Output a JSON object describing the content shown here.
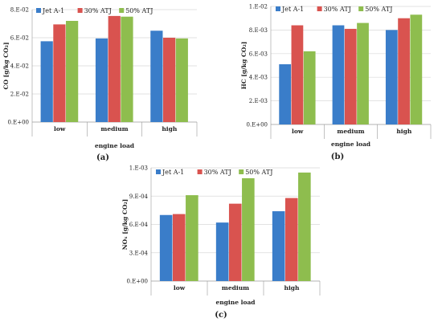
{
  "colors": {
    "series": [
      "#3a7dc9",
      "#d9534f",
      "#8ebd4e"
    ],
    "grid": "#d9d9d9",
    "axis": "#9a9a9a"
  },
  "chart_data": [
    {
      "type": "bar",
      "panel_label": "(a)",
      "ylabel": "CO [g/kg CO₂]",
      "xlabel": "engine load",
      "categories": [
        "low",
        "medium",
        "high"
      ],
      "ylim": [
        0,
        0.08
      ],
      "yticks": [
        0,
        0.02,
        0.04,
        0.06,
        0.08
      ],
      "ytick_labels": [
        "0.E+00",
        "2.E-02",
        "4.E-02",
        "6.E-02",
        "8.E-02"
      ],
      "series": [
        {
          "name": "Jet A-1",
          "values": [
            0.0575,
            0.0595,
            0.065
          ]
        },
        {
          "name": "30% ATJ",
          "values": [
            0.0695,
            0.0755,
            0.06
          ]
        },
        {
          "name": "50% ATJ",
          "values": [
            0.072,
            0.075,
            0.0595
          ]
        }
      ],
      "grid": true,
      "legend": "top"
    },
    {
      "type": "bar",
      "panel_label": "(b)",
      "ylabel": "HC [g/kg CO₂]",
      "xlabel": "engine load",
      "categories": [
        "low",
        "medium",
        "high"
      ],
      "ylim": [
        0,
        0.01
      ],
      "yticks": [
        0,
        0.002,
        0.004,
        0.006,
        0.008,
        0.01
      ],
      "ytick_labels": [
        "0.E+00",
        "2.E-03",
        "4.E-03",
        "6.E-03",
        "8.E-03",
        "1.E-02"
      ],
      "series": [
        {
          "name": "Jet A-1",
          "values": [
            0.0051,
            0.0084,
            0.008
          ]
        },
        {
          "name": "30% ATJ",
          "values": [
            0.0084,
            0.0081,
            0.009
          ]
        },
        {
          "name": "50% ATJ",
          "values": [
            0.0062,
            0.0086,
            0.0093
          ]
        }
      ],
      "grid": true,
      "legend": "top"
    },
    {
      "type": "bar",
      "panel_label": "(c)",
      "ylabel": "NOₓ [g/kg CO₂]",
      "xlabel": "engine load",
      "categories": [
        "low",
        "medium",
        "high"
      ],
      "ylim": [
        0,
        0.0012
      ],
      "yticks": [
        0,
        0.0003,
        0.0006,
        0.0009,
        0.0012
      ],
      "ytick_labels": [
        "0.E+00",
        "3.E-04",
        "6.E-04",
        "9.E-04",
        "1.E-03"
      ],
      "series": [
        {
          "name": "Jet A-1",
          "values": [
            0.0007,
            0.00062,
            0.00074
          ]
        },
        {
          "name": "30% ATJ",
          "values": [
            0.00071,
            0.00082,
            0.00088
          ]
        },
        {
          "name": "50% ATJ",
          "values": [
            0.00091,
            0.00109,
            0.00115
          ]
        }
      ],
      "grid": true,
      "legend": "top"
    }
  ]
}
